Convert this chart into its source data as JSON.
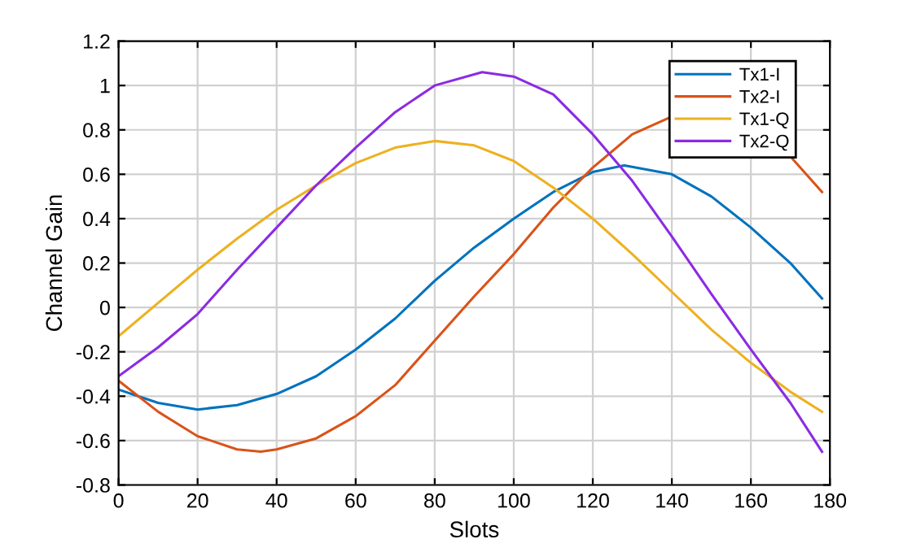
{
  "chart_data": {
    "type": "line",
    "xlabel": "Slots",
    "ylabel": "Channel Gain",
    "xlim": [
      0,
      180
    ],
    "xticks": [
      0,
      20,
      40,
      60,
      80,
      100,
      120,
      140,
      160,
      180
    ],
    "ylim": [
      -0.8,
      1.2
    ],
    "yticks": [
      -0.8,
      -0.6,
      -0.4,
      -0.2,
      0,
      0.2,
      0.4,
      0.6,
      0.8,
      1,
      1.2
    ],
    "grid": true,
    "legend": "top right",
    "marker": "none",
    "line_style": "solid",
    "series": [
      {
        "name": "Tx1-I",
        "color": "#0072bd",
        "x": [
          0,
          10,
          20,
          30,
          40,
          50,
          60,
          70,
          80,
          90,
          100,
          110,
          120,
          128,
          140,
          150,
          160,
          170,
          178
        ],
        "values": [
          -0.37,
          -0.43,
          -0.46,
          -0.44,
          -0.39,
          -0.31,
          -0.19,
          -0.05,
          0.12,
          0.27,
          0.4,
          0.52,
          0.61,
          0.64,
          0.6,
          0.5,
          0.36,
          0.2,
          0.04
        ]
      },
      {
        "name": "Tx2-I",
        "color": "#d95319",
        "x": [
          0,
          10,
          20,
          30,
          36,
          40,
          50,
          60,
          70,
          80,
          90,
          100,
          110,
          120,
          130,
          140,
          145,
          150,
          160,
          170,
          178
        ],
        "values": [
          -0.33,
          -0.47,
          -0.58,
          -0.64,
          -0.65,
          -0.64,
          -0.59,
          -0.49,
          -0.35,
          -0.15,
          0.05,
          0.24,
          0.45,
          0.63,
          0.78,
          0.86,
          null,
          null,
          null,
          0.68,
          0.52
        ]
      },
      {
        "name": "Tx1-Q",
        "color": "#edb120",
        "x": [
          0,
          10,
          20,
          30,
          40,
          50,
          60,
          70,
          80,
          90,
          100,
          110,
          120,
          130,
          140,
          150,
          160,
          170,
          178
        ],
        "values": [
          -0.13,
          0.02,
          0.17,
          0.31,
          0.44,
          0.55,
          0.65,
          0.72,
          0.75,
          0.73,
          0.66,
          0.54,
          0.4,
          0.24,
          0.07,
          -0.1,
          -0.25,
          -0.38,
          -0.47
        ]
      },
      {
        "name": "Tx2-Q",
        "color": "#8b2be2",
        "x": [
          0,
          10,
          20,
          30,
          40,
          50,
          60,
          70,
          80,
          92,
          100,
          110,
          120,
          130,
          140,
          150,
          160,
          170,
          178
        ],
        "values": [
          -0.31,
          -0.18,
          -0.03,
          0.17,
          0.36,
          0.55,
          0.72,
          0.88,
          1.0,
          1.06,
          1.04,
          0.96,
          0.78,
          0.57,
          0.32,
          0.06,
          -0.19,
          -0.43,
          -0.65
        ]
      }
    ]
  }
}
